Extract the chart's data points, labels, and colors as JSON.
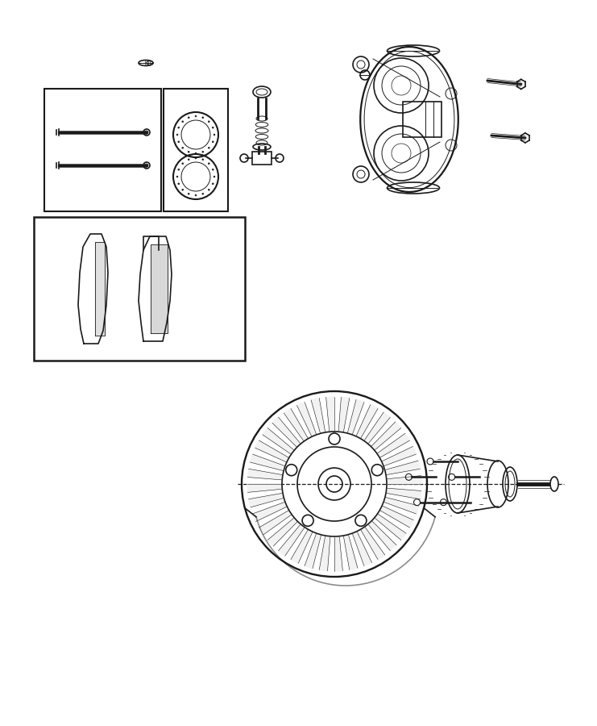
{
  "background_color": "#ffffff",
  "line_color": "#1a1a1a",
  "line_width": 1.2,
  "thin_line": 0.7,
  "figsize": [
    7.41,
    9.0
  ],
  "dpi": 100
}
